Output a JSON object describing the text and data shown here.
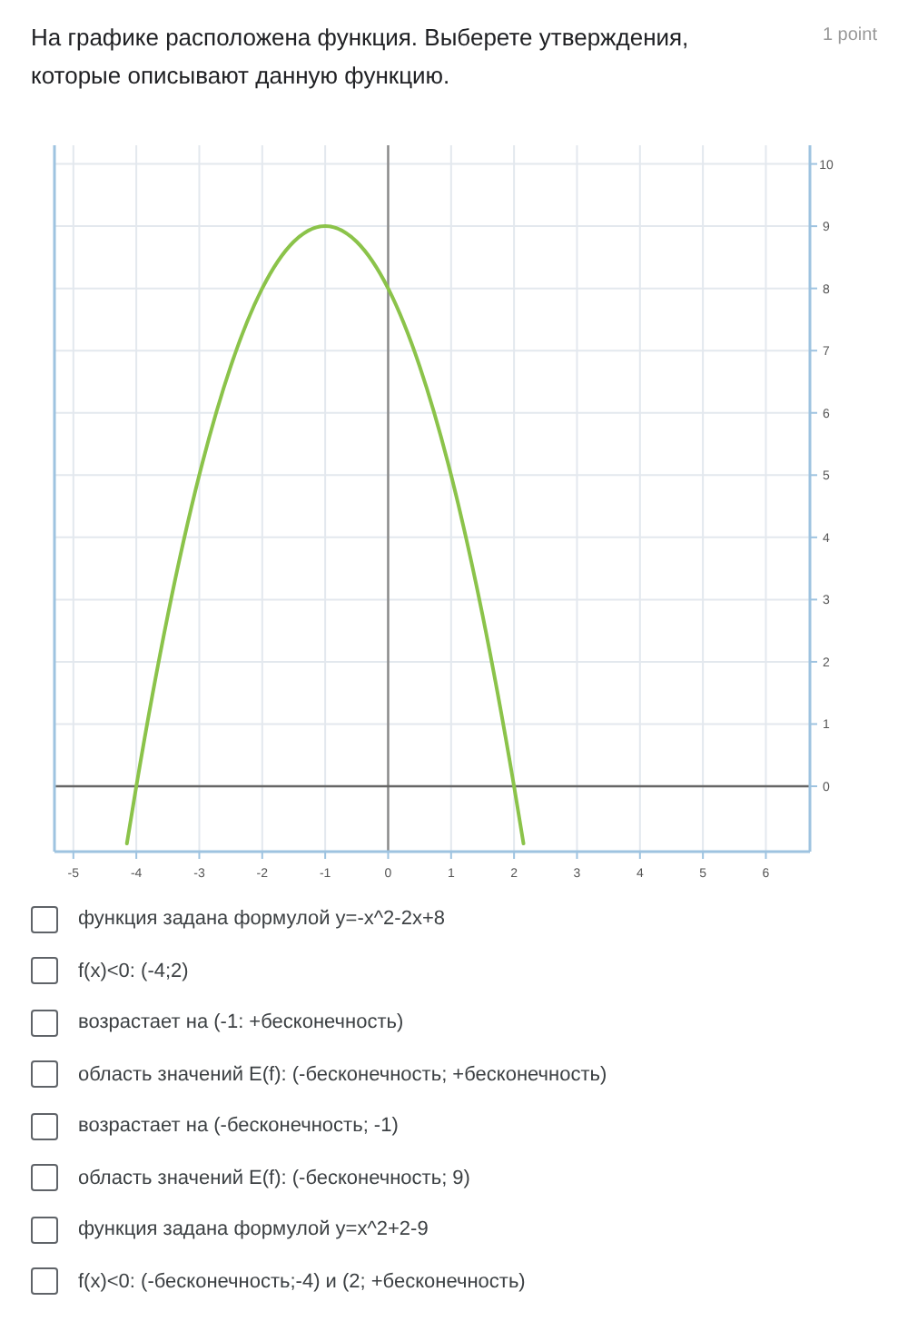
{
  "chart_data": {
    "type": "line",
    "title": "На графике расположена функция. Выберете утверждения, которые описывают данную функцию.",
    "x": [
      -4.15,
      -4,
      -3.5,
      -3,
      -2.5,
      -2,
      -1.5,
      -1,
      -0.5,
      0,
      0.5,
      1,
      1.5,
      2,
      2.15
    ],
    "series": [
      {
        "color": "#8bc34a",
        "values": [
          -0.92,
          0,
          2.75,
          5,
          6.75,
          8,
          8.75,
          9,
          8.75,
          8,
          6.75,
          5,
          2.75,
          0,
          -0.92
        ]
      }
    ],
    "xlim": [
      -5.3,
      6.7
    ],
    "ylim": [
      -1.05,
      10.3
    ],
    "xticks": [
      -5,
      -4,
      -3,
      -2,
      -1,
      0,
      1,
      2,
      3,
      4,
      5,
      6
    ],
    "yticks": [
      0,
      1,
      2,
      3,
      4,
      5,
      6,
      7,
      8,
      9,
      10
    ],
    "grid": true,
    "marker": "none",
    "line_style": "solid",
    "ref_lines": [
      {
        "axis": "x",
        "value": 0,
        "color": "#888888"
      },
      {
        "axis": "y",
        "value": 0,
        "color": "#666666"
      }
    ],
    "annotations": [
      "1 point",
      "функция задана формулой y=-x^2-2x+8",
      "f(x)<0: (-4;2)",
      "возрастает на (-1: +бесконечность)",
      "область значений E(f): (-бесконечность; +бесконечность)",
      "возрастает на (-бесконечность; -1)",
      "область значений E(f): (-бесконечность; 9)",
      "функция задана формулой y=x^2+2-9",
      "f(x)<0: (-бесконечность;-4) и (2; +бесконечность)"
    ]
  }
}
